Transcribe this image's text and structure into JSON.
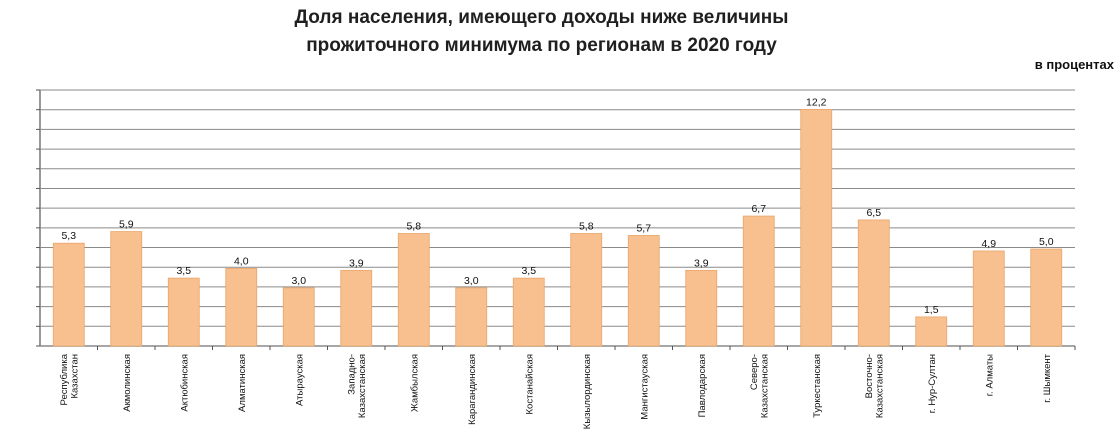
{
  "chart_data": {
    "type": "bar",
    "title_lines": [
      "Доля населения, имеющего доходы ниже величины",
      "прожиточного минимума по регионам в 2020 году"
    ],
    "unit_label": "в процентах",
    "categories": [
      "Республика Казахстан",
      "Акмолинская",
      "Актюбинская",
      "Алматинская",
      "Атырауская",
      "Западно-Казахстанская",
      "Жамбылская",
      "Карагандинская",
      "Костанайская",
      "Кызылординская",
      "Мангистауская",
      "Павлодарская",
      "Северо-Казахстанская",
      "Туркестанская",
      "Восточно-Казахстанская",
      "г. Нур-Султан",
      "г. Алматы",
      "г. Шымкент"
    ],
    "values": [
      5.3,
      5.9,
      3.5,
      4.0,
      3.0,
      3.9,
      5.8,
      3.0,
      3.5,
      5.8,
      5.7,
      3.9,
      6.7,
      12.2,
      6.5,
      1.5,
      4.9,
      5.0
    ],
    "value_labels": [
      "5,3",
      "5,9",
      "3,5",
      "4,0",
      "3,0",
      "3,9",
      "5,8",
      "3,0",
      "3,5",
      "5,8",
      "5,7",
      "3,9",
      "6,7",
      "12,2",
      "6,5",
      "1,5",
      "4,9",
      "5,0"
    ],
    "ylim": [
      0,
      13.2
    ],
    "grid": true,
    "legend": "none",
    "bar_color": "#f8c08e",
    "bar_edge_color": "#e9a56b",
    "grid_color": "#8a8a8a"
  }
}
